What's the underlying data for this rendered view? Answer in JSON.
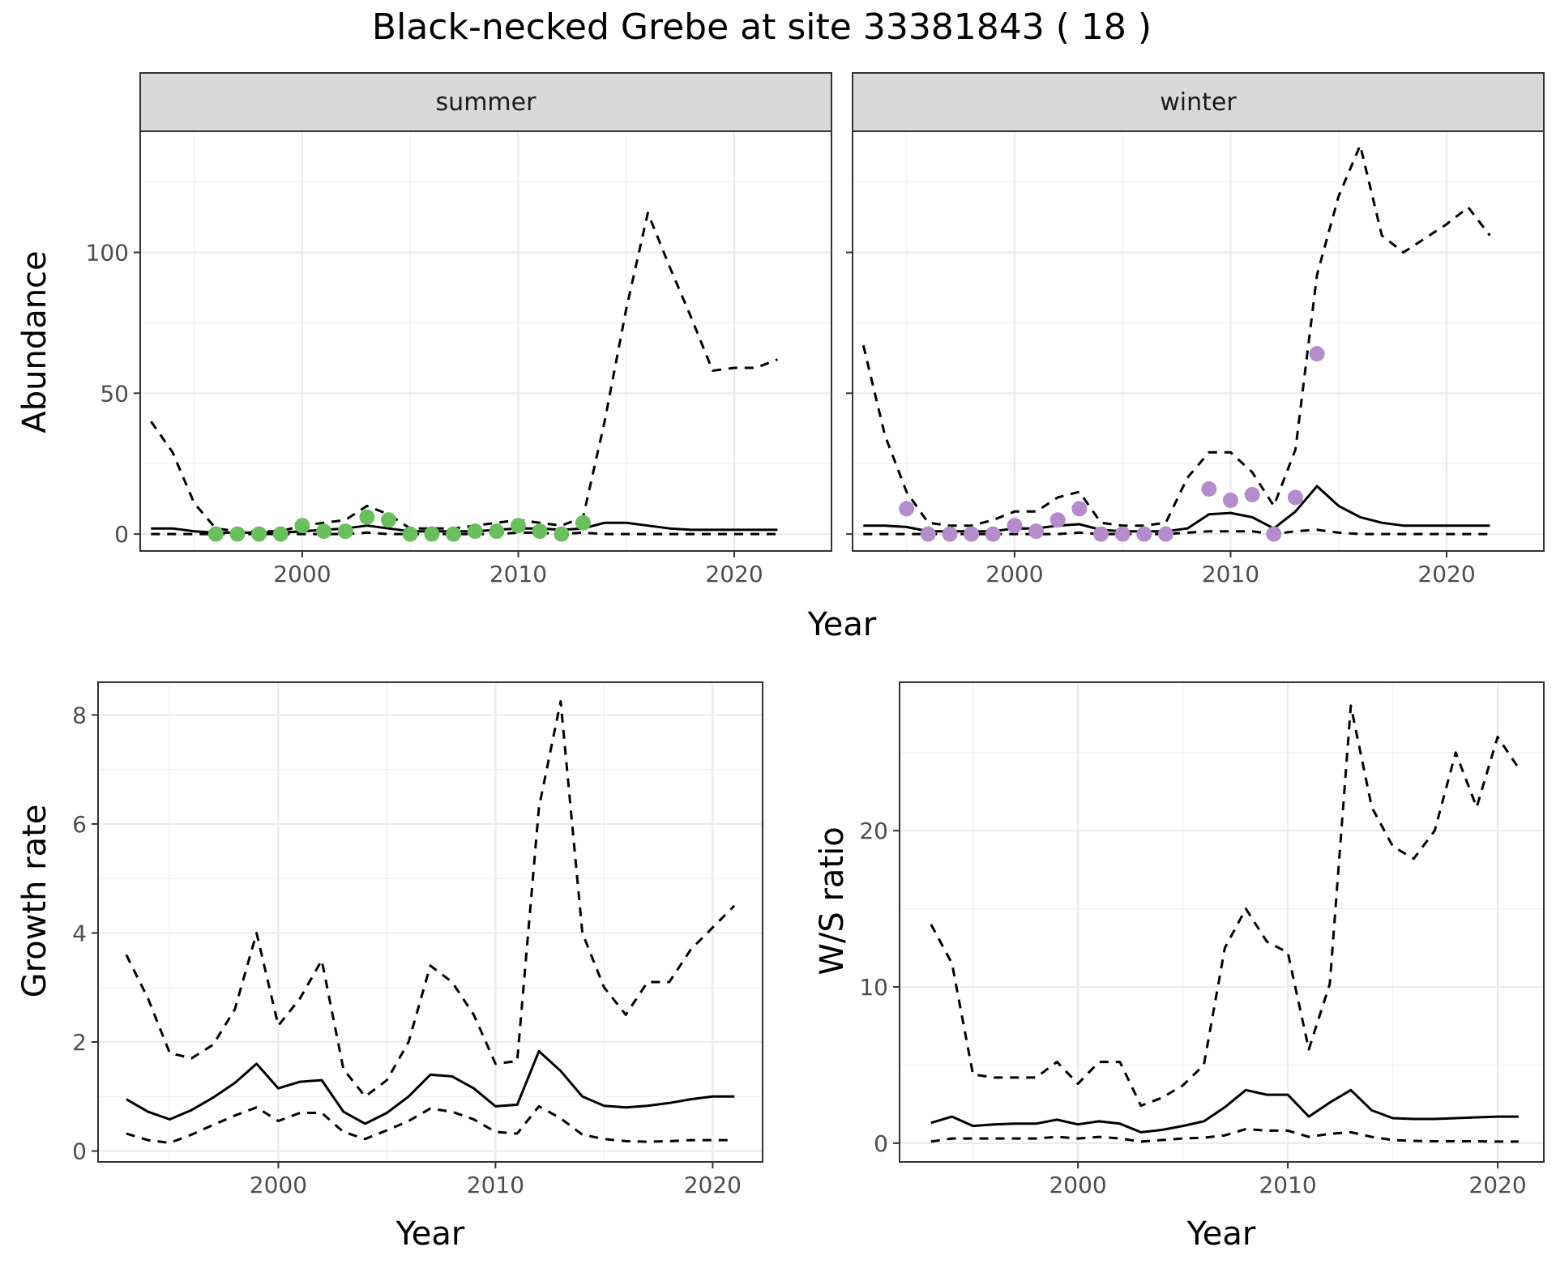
{
  "figure": {
    "title": "Black-necked Grebe at site 33381843 ( 18 )"
  },
  "chart_data": [
    {
      "type": "line",
      "panel": "summer",
      "xlabel": "Year",
      "ylabel": "Abundance",
      "xlim": [
        1992.5,
        2024.5
      ],
      "ylim": [
        -6,
        143
      ],
      "xticks": [
        2000,
        2010,
        2020
      ],
      "yticks": [
        0,
        50,
        100
      ],
      "grid": true,
      "point_color": "#6ABE5D",
      "x": [
        1993,
        1994,
        1995,
        1996,
        1997,
        1998,
        1999,
        2000,
        2001,
        2002,
        2003,
        2004,
        2005,
        2006,
        2007,
        2008,
        2009,
        2010,
        2011,
        2012,
        2013,
        2014,
        2015,
        2016,
        2017,
        2018,
        2019,
        2020,
        2021,
        2022
      ],
      "series": [
        {
          "style": "solid",
          "values": [
            2,
            2,
            1,
            0.5,
            0.5,
            0.5,
            0.5,
            1,
            1.5,
            2,
            3,
            2,
            1,
            1,
            1,
            1,
            1.5,
            2,
            2,
            1.5,
            2,
            4,
            4,
            3,
            2,
            1.5,
            1.5,
            1.5,
            1.5,
            1.5
          ]
        },
        {
          "style": "dashed",
          "values": [
            40,
            29,
            11,
            2,
            1,
            1,
            1,
            3,
            4,
            5,
            10,
            7,
            2,
            2,
            2,
            3,
            4,
            5,
            4,
            3,
            6,
            40,
            80,
            114,
            95,
            77,
            58,
            59,
            59,
            62
          ]
        },
        {
          "style": "dashed",
          "values": [
            0,
            0,
            0,
            0,
            0,
            0,
            0,
            0,
            0,
            0,
            0.5,
            0,
            0,
            0,
            0,
            0,
            0,
            0.5,
            0.5,
            0,
            0.5,
            0,
            0,
            0,
            0,
            0,
            0,
            0,
            0,
            0
          ]
        }
      ],
      "points": {
        "x": [
          1996,
          1997,
          1998,
          1999,
          2000,
          2001,
          2002,
          2003,
          2004,
          2005,
          2006,
          2007,
          2008,
          2009,
          2010,
          2011,
          2012,
          2013
        ],
        "y": [
          0,
          0,
          0,
          0,
          3,
          1,
          1,
          6,
          5,
          0,
          0,
          0,
          1,
          1,
          3,
          1,
          0,
          4
        ]
      }
    },
    {
      "type": "line",
      "panel": "winter",
      "xlabel": "Year",
      "ylabel": "Abundance",
      "xlim": [
        1992.5,
        2024.5
      ],
      "ylim": [
        -6,
        143
      ],
      "xticks": [
        2000,
        2010,
        2020
      ],
      "yticks": [
        0,
        50,
        100
      ],
      "grid": true,
      "point_color": "#B48CCB",
      "x": [
        1993,
        1994,
        1995,
        1996,
        1997,
        1998,
        1999,
        2000,
        2001,
        2002,
        2003,
        2004,
        2005,
        2006,
        2007,
        2008,
        2009,
        2010,
        2011,
        2012,
        2013,
        2014,
        2015,
        2016,
        2017,
        2018,
        2019,
        2020,
        2021,
        2022
      ],
      "series": [
        {
          "style": "solid",
          "values": [
            3,
            3,
            2.5,
            1,
            1,
            1,
            1,
            2,
            2,
            3,
            3.5,
            1.5,
            1,
            1,
            1,
            2,
            7,
            7.5,
            6,
            2,
            8,
            17,
            10,
            6,
            4,
            3,
            3,
            3,
            3,
            3
          ],
          "note_skip": true
        },
        {
          "style": "dashed",
          "values": [
            67,
            35,
            15,
            4,
            3,
            3,
            5,
            8,
            8,
            13,
            15,
            4,
            3,
            3,
            4,
            20,
            29,
            29,
            22,
            10,
            30,
            92,
            120,
            138,
            106,
            100,
            105,
            110,
            116,
            106
          ]
        },
        {
          "style": "dashed",
          "values": [
            0,
            0,
            0,
            0,
            0,
            0,
            0,
            0,
            0,
            0,
            0.5,
            0,
            0,
            0,
            0,
            0.5,
            1,
            1,
            1,
            0,
            1,
            1.5,
            0.5,
            0,
            0,
            0,
            0,
            0,
            0,
            0
          ]
        }
      ],
      "points": {
        "x": [
          1995,
          1996,
          1997,
          1998,
          1999,
          2000,
          2001,
          2002,
          2003,
          2004,
          2005,
          2006,
          2007,
          2009,
          2010,
          2011,
          2012,
          2013,
          2014
        ],
        "y": [
          9,
          0,
          0,
          0,
          0,
          3,
          1,
          5,
          9,
          0,
          0,
          0,
          0,
          16,
          12,
          14,
          0,
          13,
          64
        ]
      }
    },
    {
      "type": "line",
      "panel": "growth",
      "xlabel": "Year",
      "ylabel": "Growth rate",
      "xlim": [
        1991.7,
        2022.3
      ],
      "ylim": [
        -0.2,
        8.6
      ],
      "xticks": [
        2000,
        2010,
        2020
      ],
      "yticks": [
        0,
        2,
        4,
        6,
        8
      ],
      "grid": true,
      "x": [
        1993,
        1994,
        1995,
        1996,
        1997,
        1998,
        1999,
        2000,
        2001,
        2002,
        2003,
        2004,
        2005,
        2006,
        2007,
        2008,
        2009,
        2010,
        2011,
        2012,
        2013,
        2014,
        2015,
        2016,
        2017,
        2018,
        2019,
        2020,
        2021
      ],
      "series": [
        {
          "style": "solid",
          "values": [
            0.95,
            0.72,
            0.58,
            0.75,
            0.98,
            1.25,
            1.6,
            1.15,
            1.27,
            1.3,
            0.72,
            0.5,
            0.7,
            1.0,
            1.4,
            1.37,
            1.15,
            0.82,
            0.85,
            1.83,
            1.47,
            1.0,
            0.83,
            0.8,
            0.83,
            0.88,
            0.95,
            1.0,
            1.0
          ]
        },
        {
          "style": "dashed",
          "values": [
            3.6,
            2.8,
            1.8,
            1.7,
            1.95,
            2.6,
            4.0,
            2.3,
            2.8,
            3.5,
            1.5,
            1.0,
            1.3,
            2.0,
            3.4,
            3.1,
            2.5,
            1.6,
            1.65,
            6.3,
            8.25,
            4.0,
            3.0,
            2.5,
            3.1,
            3.1,
            3.7,
            4.1,
            4.5
          ]
        },
        {
          "style": "dashed",
          "values": [
            0.32,
            0.2,
            0.15,
            0.3,
            0.48,
            0.65,
            0.8,
            0.55,
            0.7,
            0.7,
            0.35,
            0.22,
            0.38,
            0.55,
            0.78,
            0.72,
            0.58,
            0.35,
            0.32,
            0.82,
            0.6,
            0.3,
            0.22,
            0.18,
            0.17,
            0.18,
            0.2,
            0.2,
            0.2
          ]
        }
      ]
    },
    {
      "type": "line",
      "panel": "ratio",
      "xlabel": "Year",
      "ylabel": "W/S ratio",
      "xlim": [
        1991.5,
        2022.2
      ],
      "ylim": [
        -1.2,
        29.5
      ],
      "xticks": [
        2000,
        2010,
        2020
      ],
      "yticks": [
        0,
        10,
        20
      ],
      "grid": true,
      "x": [
        1993,
        1994,
        1995,
        1996,
        1997,
        1998,
        1999,
        2000,
        2001,
        2002,
        2003,
        2004,
        2005,
        2006,
        2007,
        2008,
        2009,
        2010,
        2011,
        2012,
        2013,
        2014,
        2015,
        2016,
        2017,
        2018,
        2019,
        2020,
        2021
      ],
      "series": [
        {
          "style": "solid",
          "values": [
            1.3,
            1.7,
            1.1,
            1.2,
            1.25,
            1.25,
            1.5,
            1.2,
            1.4,
            1.25,
            0.7,
            0.85,
            1.1,
            1.4,
            2.3,
            3.4,
            3.1,
            3.1,
            1.7,
            2.6,
            3.4,
            2.1,
            1.6,
            1.55,
            1.55,
            1.6,
            1.65,
            1.7,
            1.7
          ]
        },
        {
          "style": "dashed",
          "values": [
            14,
            11.5,
            4.4,
            4.2,
            4.2,
            4.2,
            5.2,
            3.8,
            5.2,
            5.2,
            2.4,
            2.9,
            3.7,
            5.0,
            12.5,
            15.0,
            12.9,
            12.2,
            6.0,
            10.2,
            28.0,
            21.5,
            19.0,
            18.2,
            20.0,
            25.0,
            21.5,
            26.0,
            24.0
          ]
        },
        {
          "style": "dashed",
          "values": [
            0.1,
            0.3,
            0.3,
            0.3,
            0.3,
            0.3,
            0.4,
            0.3,
            0.4,
            0.3,
            0.1,
            0.2,
            0.3,
            0.35,
            0.5,
            0.9,
            0.8,
            0.8,
            0.4,
            0.6,
            0.7,
            0.4,
            0.2,
            0.15,
            0.12,
            0.12,
            0.12,
            0.1,
            0.1
          ]
        }
      ]
    }
  ]
}
